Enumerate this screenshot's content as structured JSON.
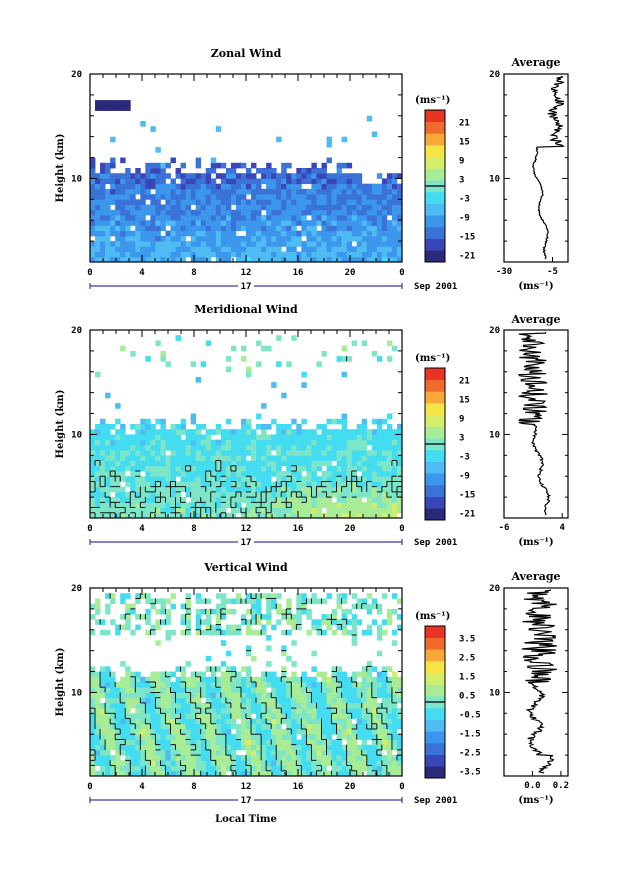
{
  "figure": {
    "x_axis_label": "Local Time",
    "y_axis_label": "Height (km)",
    "date_label": "Sep 2001",
    "day_label": "17",
    "units_label": "(ms⁻¹)",
    "average_units": "(ms⁻¹)",
    "average_title": "Average"
  },
  "colors": {
    "scale": [
      "#2a2a78",
      "#3a46b8",
      "#3a72d8",
      "#3c96ec",
      "#4ebcf2",
      "#44dcf0",
      "#7ee6c8",
      "#a8ec96",
      "#d2ee6a",
      "#f6e448",
      "#f8a838",
      "#f06a2e",
      "#e83424"
    ]
  },
  "chart_data": [
    {
      "type": "heatmap",
      "title": "Zonal Wind",
      "xlabel": "Local Time",
      "ylabel": "Height (km)",
      "x_ticks": [
        "0",
        "4",
        "8",
        "12",
        "16",
        "20",
        "0"
      ],
      "y_ticks": [
        "20",
        "10"
      ],
      "xlim": [
        0,
        24
      ],
      "ylim": [
        2,
        20
      ],
      "colorbar": {
        "label": "(ms⁻¹)",
        "ticks": [
          "21",
          "15",
          "9",
          "3",
          "-3",
          "-9",
          "-15",
          "-21"
        ],
        "range": [
          -24,
          24
        ]
      },
      "field": {
        "kind": "zonal",
        "data_top_km": 11,
        "base_value": -8,
        "top_value": -16,
        "jet_height_km": 17,
        "jet_value": -21
      },
      "average_profile": {
        "title": "Average",
        "x_ticks": [
          "-30",
          "-5"
        ],
        "xlim": [
          -30,
          3
        ],
        "y_ticks": [
          "20",
          "10"
        ],
        "ylim": [
          2,
          20
        ]
      }
    },
    {
      "type": "heatmap",
      "title": "Meridional Wind",
      "xlabel": "Local Time",
      "ylabel": "Height (km)",
      "x_ticks": [
        "0",
        "4",
        "8",
        "12",
        "16",
        "20",
        "0"
      ],
      "y_ticks": [
        "20",
        "10"
      ],
      "xlim": [
        0,
        24
      ],
      "ylim": [
        2,
        20
      ],
      "colorbar": {
        "label": "(ms⁻¹)",
        "ticks": [
          "21",
          "15",
          "9",
          "3",
          "-3",
          "-9",
          "-15",
          "-21"
        ],
        "range": [
          -24,
          24
        ]
      },
      "field": {
        "kind": "meridional",
        "data_top_km": 11,
        "base_value": 0,
        "top_value": -4,
        "late_warm_value": 6
      },
      "average_profile": {
        "title": "Average",
        "x_ticks": [
          "-6",
          "4"
        ],
        "xlim": [
          -6,
          5
        ],
        "y_ticks": [
          "20",
          "10"
        ],
        "ylim": [
          2,
          20
        ]
      }
    },
    {
      "type": "heatmap",
      "title": "Vertical Wind",
      "xlabel": "Local Time",
      "ylabel": "Height (km)",
      "x_ticks": [
        "0",
        "4",
        "8",
        "12",
        "16",
        "20",
        "0"
      ],
      "y_ticks": [
        "20",
        "10"
      ],
      "xlim": [
        0,
        24
      ],
      "ylim": [
        2,
        20
      ],
      "colorbar": {
        "label": "(ms⁻¹)",
        "ticks": [
          "3.5",
          "2.5",
          "1.5",
          "0.5",
          "-0.5",
          "-1.5",
          "-2.5",
          "-3.5"
        ],
        "range": [
          -4,
          4
        ]
      },
      "field": {
        "kind": "vertical",
        "data_top_km": 12,
        "base_value": 0,
        "amplitude": 0.6
      },
      "average_profile": {
        "title": "Average",
        "x_ticks": [
          "0.0",
          "0.2"
        ],
        "xlim": [
          -0.2,
          0.25
        ],
        "y_ticks": [
          "20",
          "10"
        ],
        "ylim": [
          2,
          20
        ]
      }
    }
  ]
}
